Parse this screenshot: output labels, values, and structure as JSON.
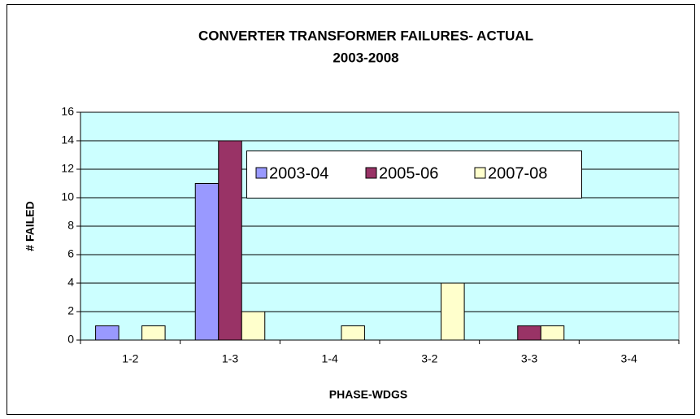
{
  "chart_data": {
    "type": "bar",
    "title": "CONVERTER TRANSFORMER FAILURES- ACTUAL",
    "subtitle": "2003-2008",
    "x_label": "PHASE-WDGS",
    "y_label": "# FAILED",
    "categories": [
      "1-2",
      "1-3",
      "1-4",
      "3-2",
      "3-3",
      "3-4"
    ],
    "series": [
      {
        "name": "2003-04",
        "color": "#9999ff",
        "values": [
          1,
          11,
          0,
          0,
          0,
          0
        ]
      },
      {
        "name": "2005-06",
        "color": "#993366",
        "values": [
          0,
          14,
          0,
          0,
          1,
          0
        ]
      },
      {
        "name": "2007-08",
        "color": "#ffffcc",
        "values": [
          1,
          2,
          1,
          4,
          1,
          0
        ]
      }
    ],
    "ylim": [
      0,
      16
    ],
    "yticks": [
      0,
      2,
      4,
      6,
      8,
      10,
      12,
      14,
      16
    ],
    "grid": true,
    "plot_background": "#ccffff",
    "legend": "top"
  }
}
